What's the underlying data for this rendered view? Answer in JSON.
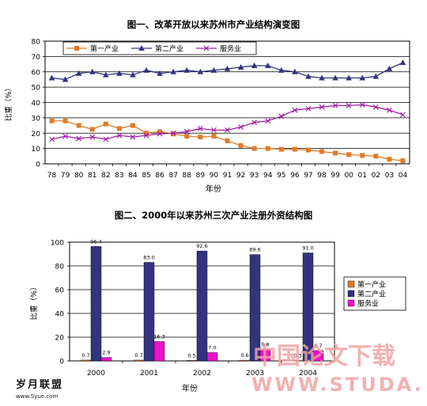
{
  "chart_data": [
    {
      "type": "line",
      "title": "图一、改革开放以来苏州市产业结构演变图",
      "xlabel": "年份",
      "ylabel": "比重（%）",
      "ylim": [
        0,
        80
      ],
      "yticks": [
        0,
        10,
        20,
        30,
        40,
        50,
        60,
        70,
        80
      ],
      "grid": true,
      "legend_position": "top-left",
      "categories": [
        "78",
        "79",
        "80",
        "81",
        "82",
        "83",
        "84",
        "85",
        "86",
        "87",
        "88",
        "89",
        "90",
        "91",
        "92",
        "93",
        "94",
        "95",
        "96",
        "97",
        "98",
        "99",
        "00",
        "01",
        "02",
        "03",
        "04"
      ],
      "series": [
        {
          "name": "第一产业",
          "color": "#e07b28",
          "marker": "square",
          "values": [
            28,
            28,
            25,
            22.5,
            26,
            23,
            25,
            20,
            21,
            19.5,
            18,
            17.5,
            18,
            15,
            12,
            10,
            10,
            9.5,
            9.5,
            9,
            8,
            7,
            6,
            5.5,
            5,
            3,
            2
          ]
        },
        {
          "name": "第二产业",
          "color": "#33337f",
          "marker": "triangle",
          "values": [
            56,
            55,
            59,
            60,
            58,
            59,
            58,
            61,
            59,
            60,
            61,
            60,
            61,
            62,
            63,
            64,
            64,
            61,
            60,
            57,
            56,
            56,
            56,
            56,
            57,
            62,
            66
          ]
        },
        {
          "name": "服务业",
          "color": "#a020a0",
          "marker": "x",
          "values": [
            16,
            18,
            16.5,
            17.5,
            16,
            18.5,
            17.5,
            18.5,
            19.5,
            20,
            21,
            23,
            22,
            22,
            24,
            27,
            28,
            31,
            35,
            36,
            37,
            38,
            38,
            38.5,
            37,
            35,
            32
          ]
        }
      ]
    },
    {
      "type": "bar",
      "title": "图二、2000年以来苏州三次产业注册外资结构图",
      "xlabel": "年份",
      "ylabel": "比重（%）",
      "ylim": [
        0,
        100
      ],
      "yticks": [
        0,
        20,
        40,
        60,
        80,
        100
      ],
      "grid": true,
      "legend_position": "right",
      "categories": [
        "2000",
        "2001",
        "2002",
        "2003",
        "2004"
      ],
      "series": [
        {
          "name": "第一产业",
          "color": "#e07b28",
          "values": [
            0.7,
            0.7,
            0.5,
            0.6,
            0.3
          ],
          "labels": [
            "0.7",
            "0.7",
            "0.5",
            "0.6",
            "0.3"
          ]
        },
        {
          "name": "第二产业",
          "color": "#33337f",
          "values": [
            96.4,
            83.0,
            92.6,
            89.6,
            91.0
          ],
          "labels": [
            "96.4",
            "83.0",
            "92.6",
            "89.6",
            "91.0"
          ]
        },
        {
          "name": "服务业",
          "color": "#ee10cc",
          "values": [
            2.9,
            16.3,
            7.0,
            9.8,
            8.7
          ],
          "labels": [
            "2.9",
            "16.3",
            "7.0",
            "9.8",
            "8.7"
          ]
        }
      ]
    }
  ],
  "watermark": {
    "left_text": "岁月联盟",
    "left_url": "www.Syue.com",
    "right_text": "中国论文下载",
    "right_url": "WWW.STUDA.",
    "right_color": "#f2a3a3"
  }
}
